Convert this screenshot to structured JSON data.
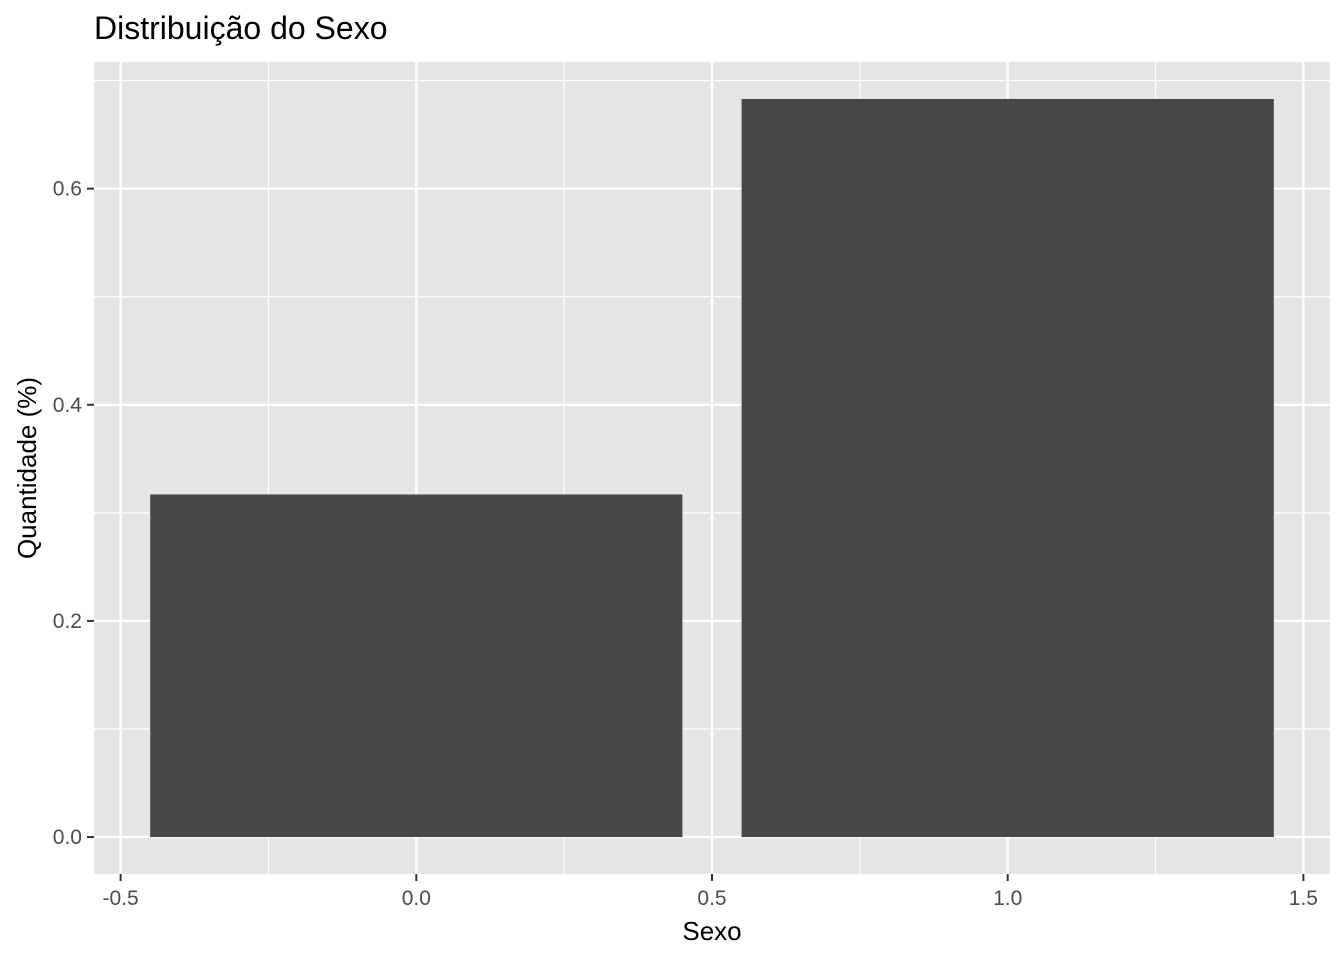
{
  "chart_data": {
    "type": "bar",
    "title": "Distribuição do Sexo",
    "xlabel": "Sexo",
    "ylabel": "Quantidade (%)",
    "bars": [
      {
        "x": 0,
        "value": 0.317
      },
      {
        "x": 1,
        "value": 0.683
      }
    ],
    "bar_width": 0.9,
    "xlim": [
      -0.545,
      1.545
    ],
    "ylim": [
      -0.0342,
      0.7172
    ],
    "x_ticks": [
      -0.5,
      0.0,
      0.5,
      1.0,
      1.5
    ],
    "x_tick_labels": [
      "-0.5",
      "0.0",
      "0.5",
      "1.0",
      "1.5"
    ],
    "y_ticks": [
      0.0,
      0.2,
      0.4,
      0.6
    ],
    "y_tick_labels": [
      "0.0",
      "0.2",
      "0.4",
      "0.6"
    ],
    "grid": true,
    "colors": {
      "panel_background": "#e5e5e5",
      "grid": "#ffffff",
      "bar_fill": "#484848",
      "tick": "#333333"
    }
  }
}
